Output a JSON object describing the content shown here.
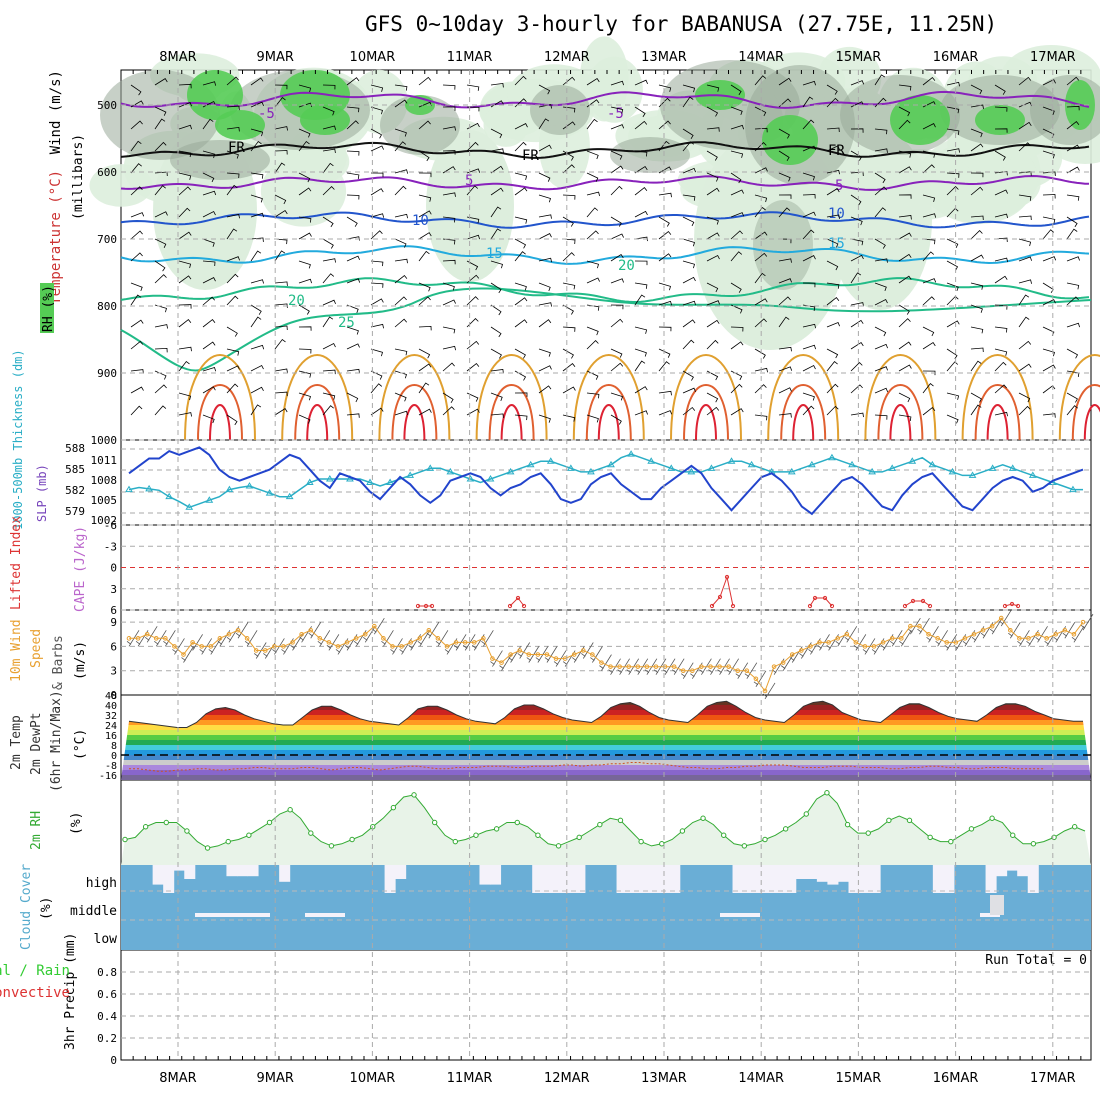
{
  "title": "GFS 0~10day 3-hourly for BABANUSA (27.75E, 11.25N)",
  "dates": [
    "8MAR",
    "9MAR",
    "10MAR",
    "11MAR",
    "12MAR",
    "13MAR",
    "14MAR",
    "15MAR",
    "16MAR",
    "17MAR"
  ],
  "colors": {
    "grid": "#aaaaaa",
    "rh_green": "#55cc55",
    "rh_light": "#ddeedd",
    "rh_gray": "#99aa99",
    "cloud": "#6aaed6",
    "thick": "#2aaec6",
    "slp": "#2244cc",
    "wind": "#e8a030",
    "lifted": "#dd3333",
    "rh2m": "#33aa33",
    "precip_total": "#33cc33",
    "precip_conv": "#dd3333"
  },
  "panels": {
    "upper": {
      "label_wind": "Wind (m/s)",
      "label_temp": "Temperature (°C)",
      "label_rh": "RH (%)",
      "label_mb": "(millibars)",
      "y_ticks": [
        "500",
        "600",
        "700",
        "800",
        "900",
        "1000"
      ]
    },
    "slp": {
      "label_thick": "1000-500mb Thickness (dm)",
      "label_slp": "SLP (mb)",
      "thick_ticks": [
        "588",
        "585",
        "582",
        "579"
      ],
      "slp_ticks": [
        "1011",
        "1008",
        "1005",
        "1002"
      ]
    },
    "lifted": {
      "label_li": "Lifted Index",
      "label_cape": "CAPE (J/kg)",
      "y_ticks": [
        "-6",
        "-3",
        "0",
        "3",
        "6"
      ]
    },
    "wind10m": {
      "label_a": "10m Wind",
      "label_b": "Speed",
      "label_c": "& Barbs",
      "label_unit": "(m/s)",
      "y_ticks": [
        "9",
        "6",
        "3",
        "0"
      ]
    },
    "temp2m": {
      "label_a": "2m Temp",
      "label_b": "2m DewPt",
      "label_c": "(6hr Min/Max)",
      "label_unit": "(°C)",
      "y_ticks": [
        "48",
        "40",
        "32",
        "24",
        "16",
        "8",
        "0",
        "-8",
        "-16"
      ]
    },
    "rh2m": {
      "label": "2m RH",
      "label_unit": "(%)"
    },
    "cloud": {
      "label": "Cloud Cover",
      "label_unit": "(%)",
      "levels": [
        "high",
        "middle",
        "low"
      ]
    },
    "precip": {
      "label_a": "3hr Precip (mm)",
      "label_total": "Total / Rain",
      "label_conv": "Convective",
      "run_total": "Run Total = 0",
      "y_ticks": [
        "0.8",
        "0.6",
        "0.4",
        "0.2",
        "0"
      ]
    }
  },
  "chart_data": [
    {
      "type": "line",
      "title": "1000-500mb Thickness (dm) / SLP (mb)",
      "series": [
        {
          "name": "SLP (mb)",
          "values": [
            1008.5,
            1009.5,
            1010.5,
            1010.5,
            1011.5,
            1011,
            1011.5,
            1012,
            1011,
            1009,
            1008,
            1007.5,
            1008,
            1008.5,
            1009,
            1010,
            1011,
            1010.5,
            1009,
            1007.5,
            1006.5,
            1008.5,
            1008,
            1007.5,
            1006,
            1005,
            1006.5,
            1008,
            1007,
            1005.5,
            1004.5,
            1005.5,
            1007.5,
            1008,
            1008.5,
            1008,
            1006.5,
            1005.5,
            1006.5,
            1007,
            1008,
            1008.5,
            1007,
            1005,
            1004.5,
            1005,
            1007,
            1008,
            1008.5,
            1007,
            1006,
            1005,
            1005,
            1006.5,
            1007.5,
            1008.5,
            1009.5,
            1008.5,
            1006.5,
            1005,
            1003.5,
            1005,
            1006.5,
            1008,
            1008.5,
            1007.5,
            1006,
            1004,
            1003,
            1004.5,
            1006,
            1007.5,
            1008,
            1007,
            1005.5,
            1004,
            1003.5,
            1005.5,
            1007,
            1008,
            1008.5,
            1007,
            1005.5,
            1004,
            1003.5,
            1005,
            1006.5,
            1007.5,
            1008,
            1007.5,
            1006,
            1006.5,
            1007.5,
            1008,
            1008.5,
            1009
          ]
        },
        {
          "name": "1000-500mb Thickness (dm)",
          "values": [
            582.5,
            582.8,
            582.6,
            582.4,
            581.5,
            580.8,
            580,
            580.5,
            581,
            581.5,
            582.5,
            582.8,
            583,
            582.5,
            582,
            581.5,
            581.5,
            582.5,
            583.5,
            584,
            584,
            584,
            584,
            584,
            583.5,
            583,
            583.5,
            584,
            584.5,
            585,
            585.5,
            585.5,
            585,
            584.5,
            584,
            583.5,
            584,
            584.5,
            585,
            585.5,
            586,
            586.5,
            586.5,
            586,
            585.5,
            585,
            585,
            585.5,
            586,
            587,
            587.5,
            587,
            586.5,
            586,
            585.5,
            585,
            585,
            585,
            585.5,
            586,
            586.5,
            586.5,
            586,
            585.5,
            585,
            585,
            585,
            585.5,
            586,
            586.5,
            587,
            586.5,
            586,
            585.5,
            585,
            585,
            585.5,
            586,
            586.5,
            587,
            586,
            585.5,
            585,
            584.5,
            584.5,
            585,
            585.5,
            586,
            585.5,
            585,
            584.5,
            584,
            583.5,
            583,
            582.5,
            582.5
          ]
        }
      ],
      "slp_ylim": [
        1001.5,
        1013
      ],
      "thick_ylim": [
        577.5,
        589.5
      ]
    },
    {
      "type": "line",
      "title": "10m Wind Speed (m/s)",
      "series": [
        {
          "name": "10m Wind Speed",
          "values": [
            7,
            7,
            7.5,
            7,
            7,
            6,
            5,
            6.5,
            6,
            6,
            7,
            7.5,
            8,
            7,
            5.5,
            5.5,
            6,
            6,
            6.5,
            7.5,
            8,
            7,
            6.5,
            6,
            6.5,
            7,
            7.5,
            8.5,
            7,
            6,
            6,
            6.5,
            7,
            8,
            7,
            6,
            6.5,
            6.5,
            6.5,
            7,
            4.5,
            4,
            5,
            5.5,
            5,
            5,
            5,
            4.5,
            4.5,
            5,
            5.5,
            5,
            4,
            3.5,
            3.5,
            3.5,
            3.5,
            3.5,
            3.5,
            3.5,
            3.5,
            3,
            3,
            3.5,
            3.5,
            3.5,
            3.5,
            3,
            3,
            2,
            0.5,
            3.5,
            4,
            5,
            5.5,
            6,
            6.5,
            6.5,
            7,
            7.5,
            6.5,
            6,
            6,
            6.5,
            7,
            7,
            8.5,
            8.5,
            7.5,
            7,
            6.5,
            6.5,
            7,
            7.5,
            8,
            8.5,
            9.5,
            8,
            7,
            7,
            7.5,
            7,
            7.5,
            8,
            7.5,
            9
          ]
        }
      ],
      "ylim": [
        0,
        10.5
      ]
    },
    {
      "type": "line",
      "title": "Lifted Index / CAPE",
      "series": [
        {
          "name": "Lifted Index",
          "values": [
            5.5,
            5.5,
            5.5,
            4.8,
            5.5,
            5.5,
            4.2,
            5.5,
            5.5,
            3.8,
            5.5,
            5.5,
            5.5,
            3.2,
            5.5,
            5.5,
            4.8,
            4.8,
            5.5,
            5.5,
            5.5,
            5.5,
            3.2,
            3.2,
            5.5,
            5.5,
            5.5,
            5.5,
            5.5,
            5.5,
            5.5
          ]
        }
      ],
      "ylim": [
        -6,
        6
      ]
    },
    {
      "type": "area",
      "title": "2m Temp / 2m DewPt",
      "series": [
        {
          "name": "2m Temp (°C)",
          "values": [
            27,
            26,
            25,
            24,
            23,
            22,
            22,
            26,
            33,
            37,
            38,
            36,
            32,
            29,
            27,
            25,
            24,
            24,
            30,
            36,
            39,
            39,
            36,
            32,
            29,
            27,
            26,
            25,
            24,
            30,
            37,
            39,
            39,
            36,
            32,
            29,
            27,
            26,
            25,
            30,
            37,
            40,
            40,
            37,
            33,
            30,
            28,
            27,
            26,
            31,
            38,
            41,
            42,
            39,
            34,
            30,
            28,
            27,
            26,
            32,
            39,
            42,
            43,
            39,
            34,
            30,
            28,
            27,
            26,
            32,
            39,
            42,
            43,
            40,
            34,
            31,
            28,
            27,
            26,
            32,
            38,
            41,
            41,
            38,
            34,
            31,
            29,
            28,
            27,
            32,
            38,
            41,
            41,
            39,
            35,
            32,
            29,
            28,
            27,
            27
          ]
        },
        {
          "name": "2m DewPt (°C)",
          "values": [
            -11,
            -11,
            -12,
            -13,
            -13,
            -12,
            -12,
            -11,
            -11,
            -12,
            -12,
            -11,
            -11,
            -10,
            -10,
            -11,
            -11,
            -11,
            -10,
            -10,
            -11,
            -12,
            -11,
            -10,
            -10,
            -11,
            -12,
            -11,
            -10,
            -9,
            -9,
            -10,
            -11,
            -11,
            -10,
            -10,
            -10,
            -9,
            -9,
            -9,
            -10,
            -10,
            -9,
            -9,
            -9,
            -8,
            -8,
            -9,
            -8,
            -8,
            -7,
            -7,
            -6,
            -6,
            -7,
            -7,
            -8,
            -9,
            -10,
            -10,
            -11,
            -11,
            -10,
            -10,
            -9,
            -9,
            -8,
            -8,
            -8,
            -9,
            -10,
            -10,
            -10,
            -9,
            -9,
            -9,
            -10,
            -10,
            -10,
            -11,
            -11,
            -10,
            -10,
            -9,
            -9,
            -10,
            -10,
            -11,
            -11,
            -10,
            -10,
            -10,
            -11,
            -11,
            -11,
            -11
          ]
        }
      ],
      "ylim": [
        -20,
        48
      ]
    },
    {
      "type": "area",
      "title": "2m RH (%)",
      "series": [
        {
          "name": "2m RH",
          "values": [
            12,
            13,
            18,
            20,
            20,
            20,
            16,
            11,
            8,
            9,
            11,
            12,
            14,
            17,
            20,
            24,
            26,
            22,
            15,
            11,
            9,
            10,
            12,
            14,
            18,
            22,
            27,
            32,
            33,
            27,
            20,
            14,
            11,
            12,
            14,
            16,
            17,
            20,
            20,
            18,
            14,
            10,
            9,
            11,
            13,
            16,
            19,
            22,
            21,
            16,
            11,
            9,
            10,
            12,
            16,
            20,
            22,
            19,
            14,
            10,
            9,
            10,
            12,
            14,
            17,
            20,
            24,
            31,
            34,
            29,
            19,
            15,
            15,
            17,
            21,
            23,
            21,
            17,
            13,
            11,
            11,
            14,
            17,
            19,
            22,
            20,
            14,
            10,
            10,
            11,
            13,
            16,
            18,
            16
          ]
        }
      ],
      "ylim": [
        0,
        40
      ]
    },
    {
      "type": "bar",
      "title": "Cloud Cover (%)",
      "series": [
        {
          "name": "high",
          "values": [
            100,
            100,
            100,
            30,
            0,
            80,
            50,
            100,
            100,
            100,
            60,
            60,
            60,
            100,
            100,
            40,
            100,
            100,
            100,
            100,
            100,
            100,
            100,
            100,
            100,
            0,
            50,
            100,
            100,
            100,
            100,
            100,
            100,
            100,
            30,
            30,
            100,
            100,
            100,
            0,
            0,
            0,
            0,
            0,
            100,
            100,
            100,
            0,
            0,
            0,
            0,
            0,
            0,
            100,
            100,
            100,
            100,
            100,
            0,
            0,
            0,
            0,
            0,
            0,
            50,
            50,
            40,
            30,
            40,
            0,
            0,
            0,
            100,
            100,
            100,
            100,
            100,
            0,
            0,
            100,
            100,
            100,
            0,
            60,
            80,
            60,
            0,
            100,
            100,
            100,
            100,
            100
          ]
        },
        {
          "name": "middle",
          "values": [
            100,
            100,
            100,
            100,
            100,
            100,
            100,
            100,
            100,
            100,
            100,
            100,
            100,
            100,
            100,
            100,
            100,
            100,
            100,
            100,
            100,
            100,
            100,
            100,
            100,
            100,
            100,
            100,
            100,
            100,
            100,
            100,
            100,
            100,
            100,
            100,
            100,
            100,
            100,
            100,
            100,
            100,
            100,
            100,
            100,
            100,
            100,
            100,
            100,
            100,
            100,
            100,
            100,
            100,
            100,
            100,
            100,
            100,
            100,
            100,
            100,
            100,
            100,
            100,
            100,
            100,
            100,
            100,
            100,
            100,
            100,
            100,
            100,
            100,
            100,
            100,
            100,
            100,
            100,
            100,
            100,
            100,
            100,
            100,
            100,
            100,
            100,
            100,
            100,
            100,
            100,
            100,
            100,
            100
          ]
        },
        {
          "name": "low",
          "values": [
            100,
            100,
            100,
            100,
            100,
            100,
            100,
            100,
            100,
            100,
            100,
            100,
            100,
            100,
            100,
            100,
            100,
            100,
            100,
            100,
            100,
            100,
            100,
            100,
            100,
            100,
            100,
            100,
            100,
            100,
            100,
            100,
            100,
            100,
            100,
            100,
            100,
            100,
            100,
            100,
            100,
            100,
            100,
            100,
            100,
            100,
            100,
            100,
            100,
            100,
            100,
            100,
            100,
            100,
            100,
            100,
            100,
            100,
            100,
            100,
            100,
            100,
            100,
            100,
            100,
            100,
            100,
            100,
            100,
            100,
            100,
            100,
            100,
            100,
            100,
            100,
            100,
            100,
            100,
            100,
            100,
            100,
            100,
            100,
            100,
            100,
            100,
            100,
            100,
            100,
            100,
            100,
            100,
            100
          ]
        }
      ],
      "ylim": [
        0,
        100
      ]
    },
    {
      "type": "bar",
      "title": "3hr Precip (mm)",
      "series": [
        {
          "name": "Total / Rain",
          "values": []
        }
      ],
      "ylim": [
        0,
        1
      ]
    }
  ]
}
